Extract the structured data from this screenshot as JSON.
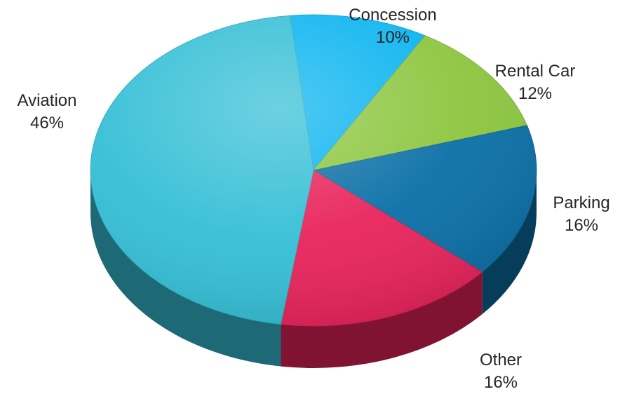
{
  "chart_data": {
    "type": "pie",
    "title": "",
    "slices": [
      {
        "label": "Concession",
        "value": 10,
        "display": "10%",
        "color": "#0AB4F0"
      },
      {
        "label": "Rental Car",
        "value": 12,
        "display": "12%",
        "color": "#8CC63F"
      },
      {
        "label": "Parking",
        "value": 16,
        "display": "16%",
        "color": "#0A6FA6"
      },
      {
        "label": "Other",
        "value": 16,
        "display": "16%",
        "color": "#E8235A"
      },
      {
        "label": "Aviation",
        "value": 46,
        "display": "46%",
        "color": "#35BFD6"
      }
    ],
    "style": "3d-tilted"
  }
}
